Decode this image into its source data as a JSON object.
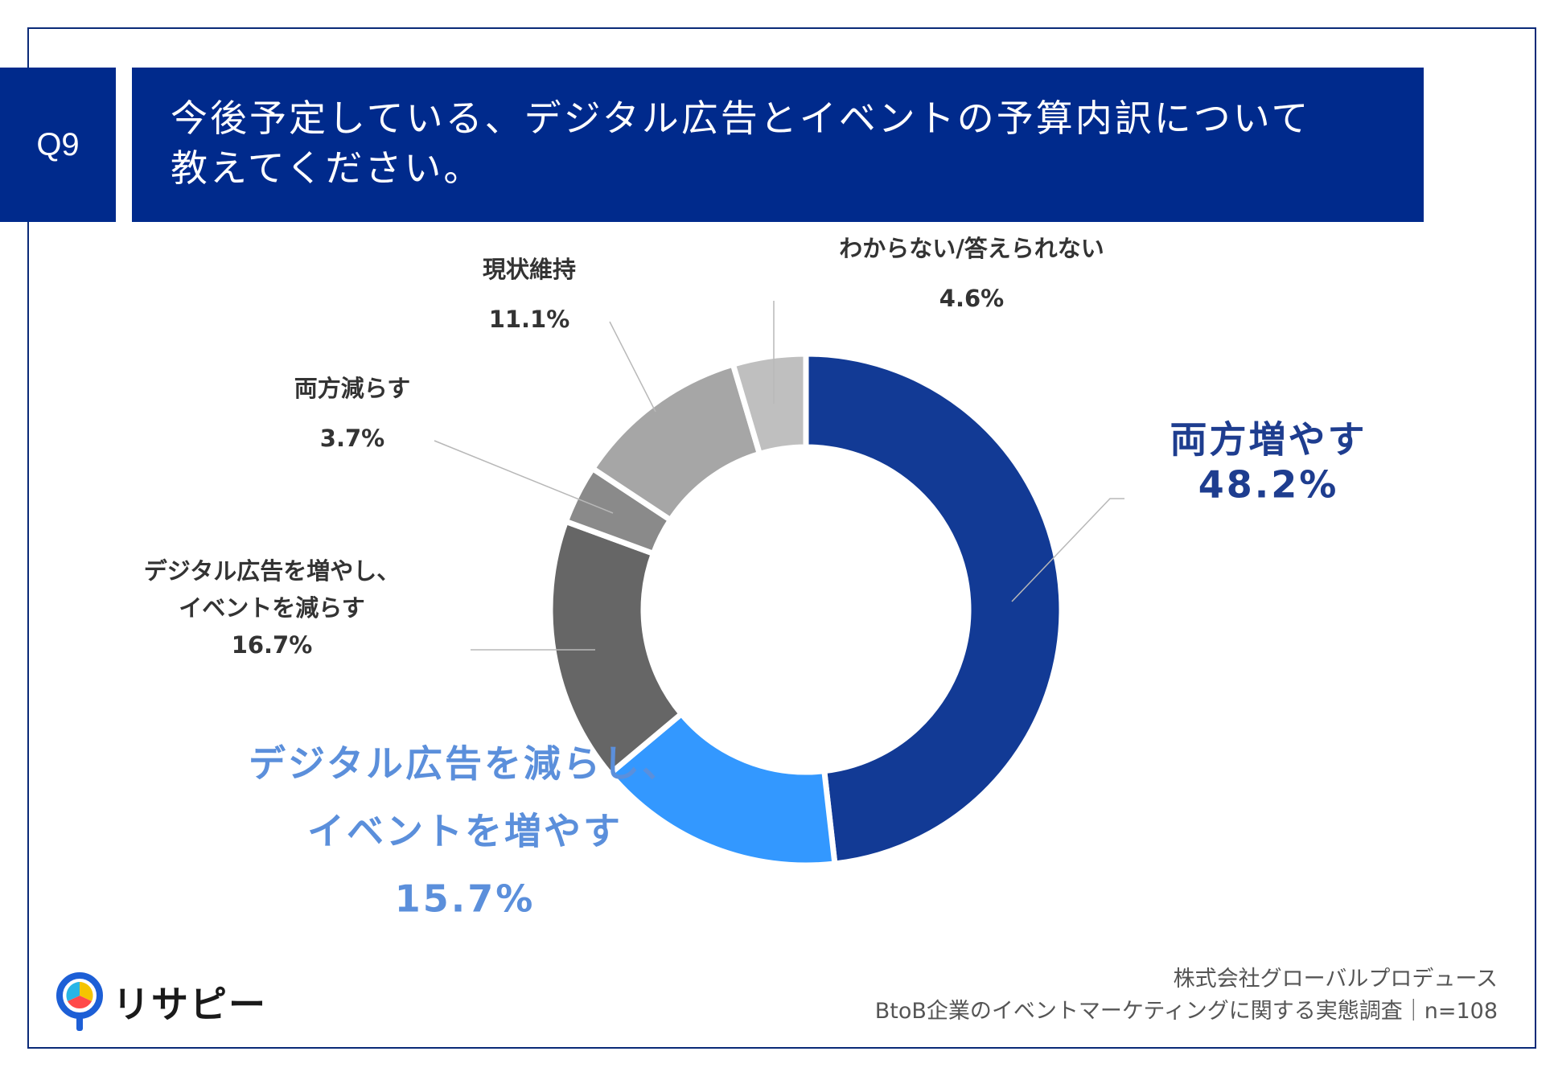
{
  "header": {
    "q_number": "Q9",
    "title_line1": "今後予定している、デジタル広告とイベントの予算内訳について",
    "title_line2": "教えてください。"
  },
  "chart_data": {
    "type": "pie",
    "variant": "donut",
    "title": "今後予定している、デジタル広告とイベントの予算内訳について教えてください。",
    "slices": [
      {
        "label": "両方増やす",
        "label_lines": [
          "両方増やす"
        ],
        "value": 48.2,
        "value_text": "48.2%",
        "color": "#123a95",
        "label_color": "#1e3d8f"
      },
      {
        "label": "デジタル広告を減らし、イベントを増やす",
        "label_lines": [
          "デジタル広告を減らし、",
          "イベントを増やす"
        ],
        "value": 15.7,
        "value_text": "15.7%",
        "color": "#3398ff",
        "label_color": "#5b8fdb"
      },
      {
        "label": "デジタル広告を増やし、イベントを減らす",
        "label_lines": [
          "デジタル広告を増やし、",
          "イベントを減らす"
        ],
        "value": 16.7,
        "value_text": "16.7%",
        "color": "#666666",
        "label_color": "#333333"
      },
      {
        "label": "両方減らす",
        "label_lines": [
          "両方減らす"
        ],
        "value": 3.7,
        "value_text": "3.7%",
        "color": "#8a8a8a",
        "label_color": "#333333"
      },
      {
        "label": "現状維持",
        "label_lines": [
          "現状維持"
        ],
        "value": 11.1,
        "value_text": "11.1%",
        "color": "#a6a6a6",
        "label_color": "#333333"
      },
      {
        "label": "わからない/答えられない",
        "label_lines": [
          "わからない/答えられない"
        ],
        "value": 4.6,
        "value_text": "4.6%",
        "color": "#bfbfbf",
        "label_color": "#333333"
      }
    ],
    "start_angle_deg": 0,
    "direction": "clockwise",
    "n": 108
  },
  "footer": {
    "company": "株式会社グローバルプロデュース",
    "survey": "BtoB企業のイベントマーケティングに関する実態調査｜n=108"
  },
  "logo": {
    "text": "リサピー"
  }
}
